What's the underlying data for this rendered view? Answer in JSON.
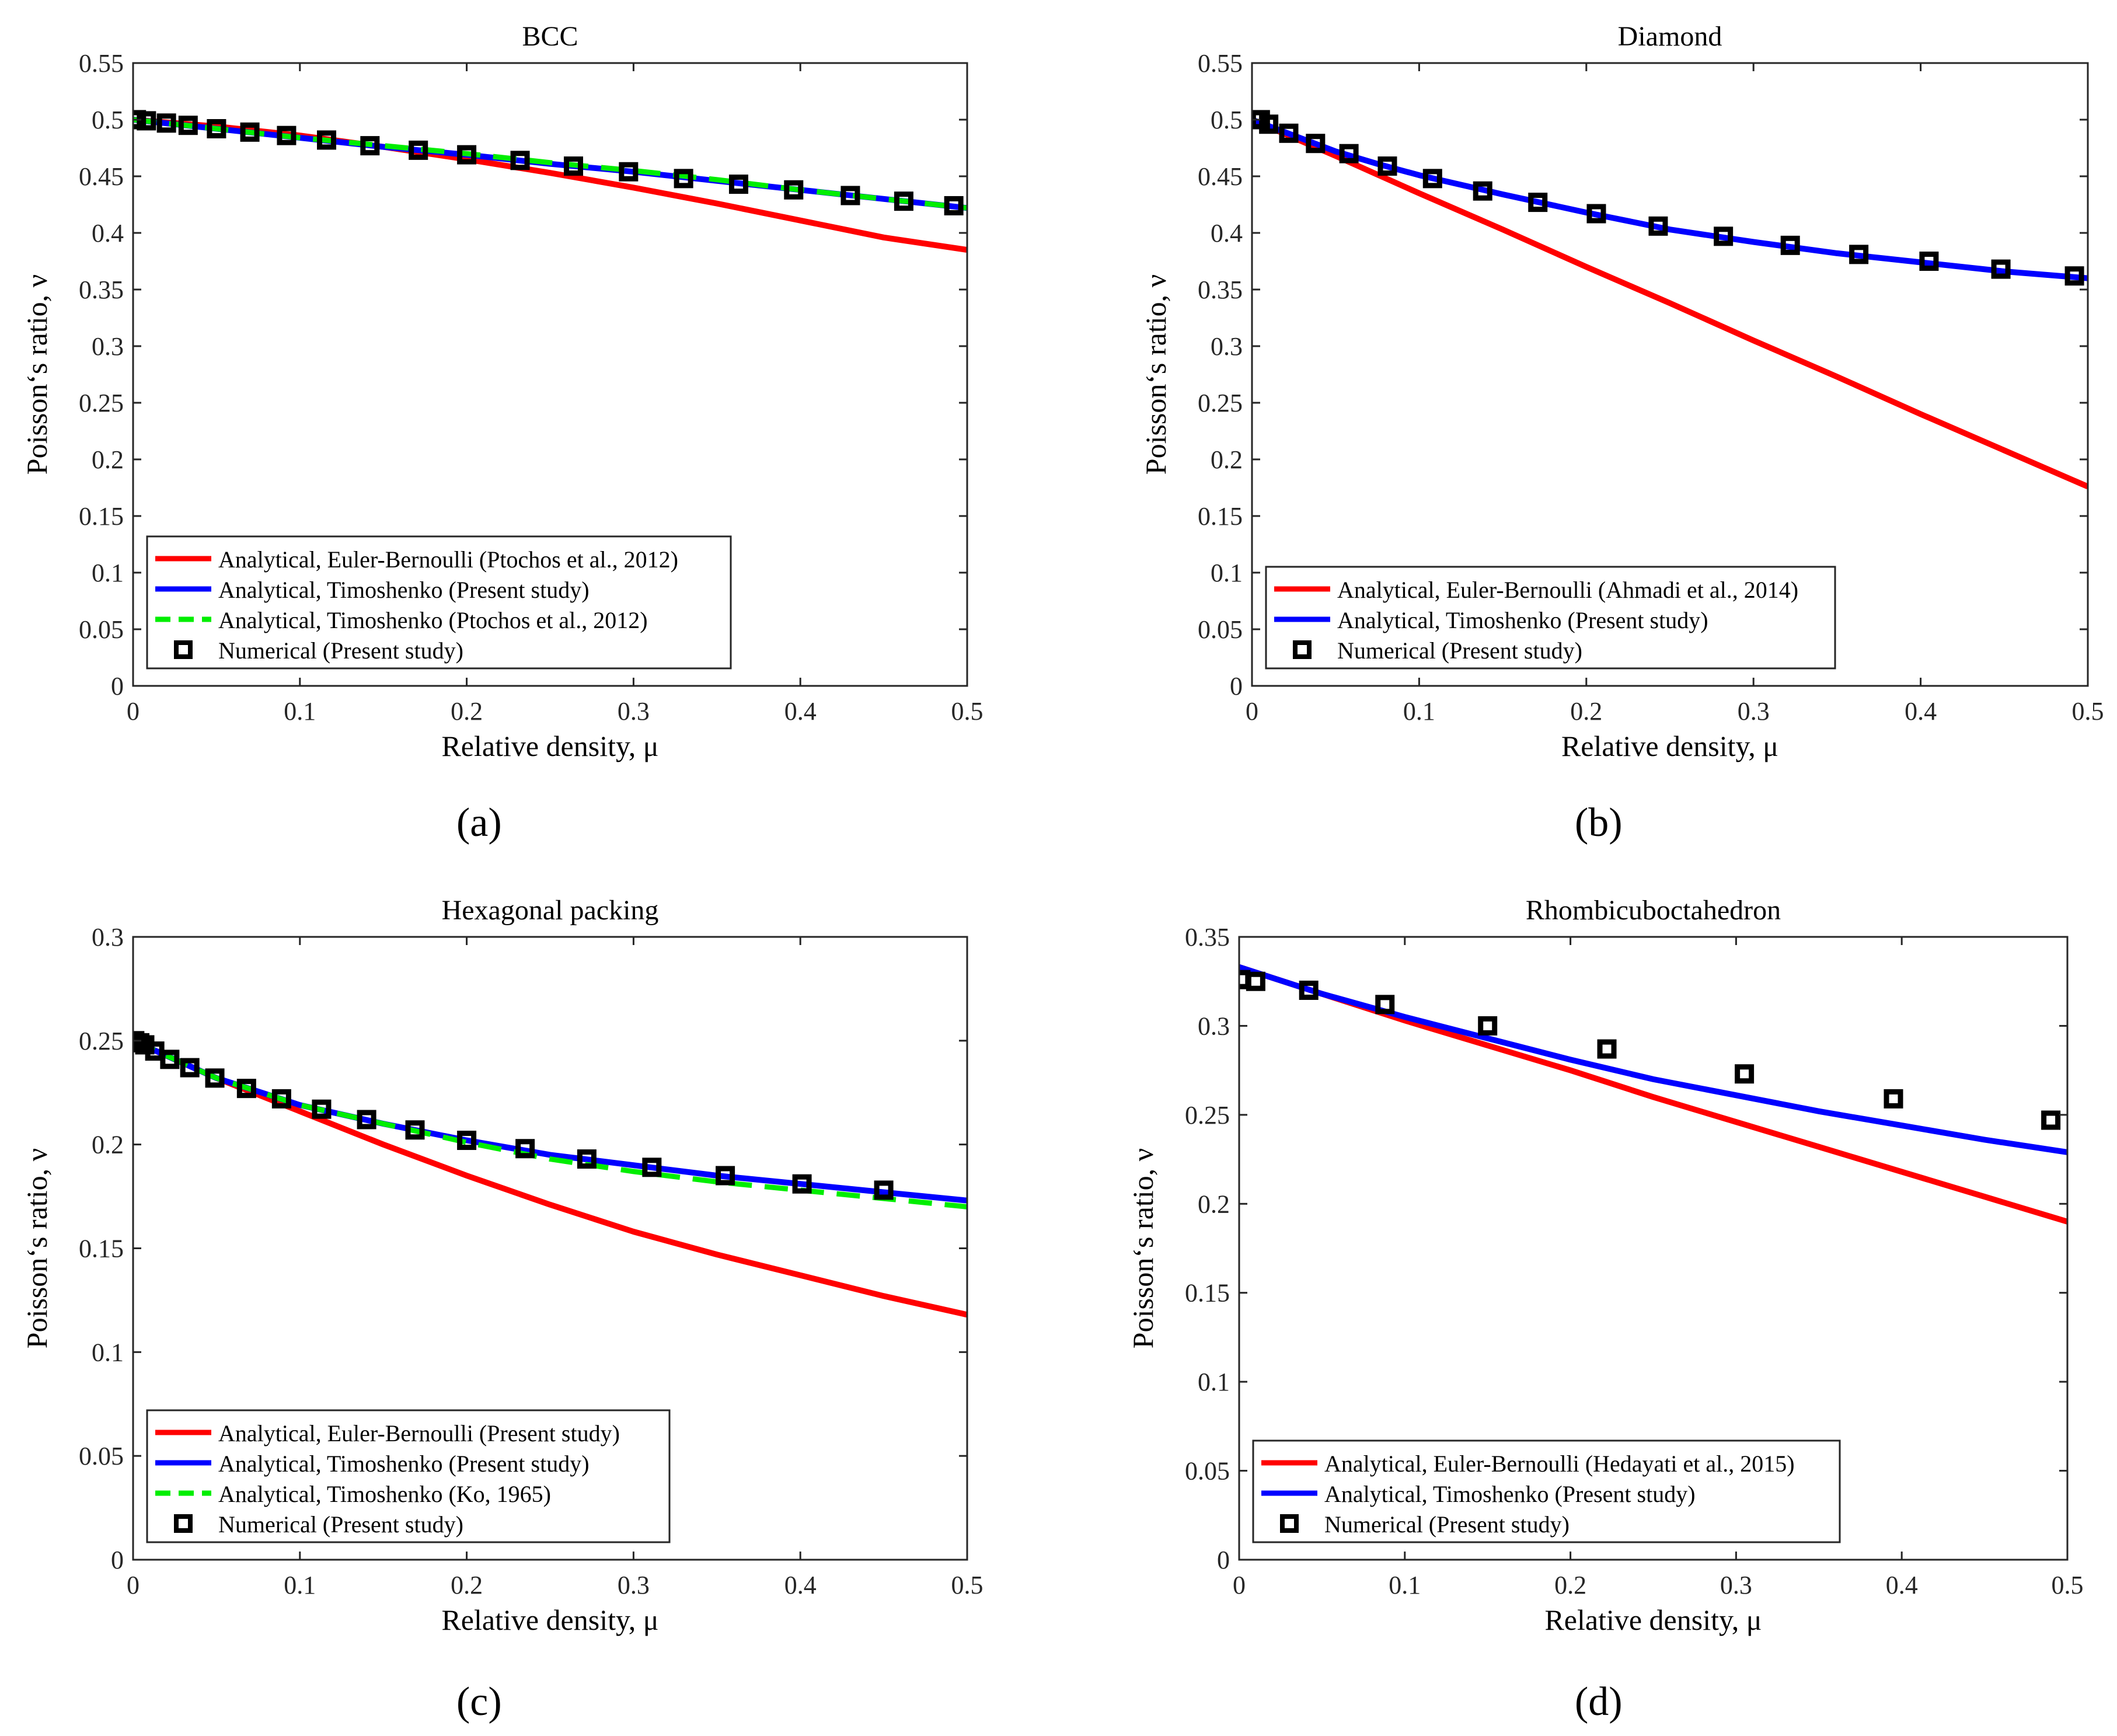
{
  "panel_labels": [
    "(a)",
    "(b)",
    "(c)",
    "(d)"
  ],
  "chart_data": [
    {
      "type": "line",
      "title": "BCC",
      "xlabel": "Relative density, μ",
      "ylabel": "Poisson‘s ratio, ν",
      "xlim": [
        0,
        0.5
      ],
      "ylim": [
        0,
        0.55
      ],
      "xticks": [
        0,
        0.1,
        0.2,
        0.3,
        0.4,
        0.5
      ],
      "xtick_labels": [
        "0",
        "0.1",
        "0.2",
        "0.3",
        "0.4",
        "0.5"
      ],
      "yticks": [
        0,
        0.05,
        0.1,
        0.15,
        0.2,
        0.25,
        0.3,
        0.35,
        0.4,
        0.45,
        0.5,
        0.55
      ],
      "ytick_labels": [
        "0",
        "0.05",
        "0.1",
        "0.15",
        "0.2",
        "0.25",
        "0.3",
        "0.35",
        "0.4",
        "0.45",
        "0.5",
        "0.55"
      ],
      "legend_position": "bottom-left",
      "series": [
        {
          "name": "Analytical, Euler-Bernoulli (Ptochos et al., 2012)",
          "style": "line",
          "color": "#ff0000",
          "x": [
            0,
            0.05,
            0.1,
            0.15,
            0.2,
            0.25,
            0.3,
            0.35,
            0.4,
            0.45,
            0.5
          ],
          "y": [
            0.5,
            0.494,
            0.486,
            0.476,
            0.465,
            0.453,
            0.44,
            0.426,
            0.411,
            0.396,
            0.385
          ]
        },
        {
          "name": "Analytical, Timoshenko (Present study)",
          "style": "line",
          "color": "#0000ff",
          "x": [
            0,
            0.05,
            0.1,
            0.15,
            0.2,
            0.25,
            0.3,
            0.35,
            0.4,
            0.45,
            0.5
          ],
          "y": [
            0.5,
            0.492,
            0.484,
            0.476,
            0.469,
            0.461,
            0.454,
            0.446,
            0.438,
            0.43,
            0.422
          ]
        },
        {
          "name": "Analytical, Timoshenko (Ptochos et al., 2012)",
          "style": "dashed",
          "color": "#00ee00",
          "x": [
            0,
            0.05,
            0.1,
            0.15,
            0.2,
            0.25,
            0.3,
            0.35,
            0.4,
            0.45,
            0.5
          ],
          "y": [
            0.5,
            0.492,
            0.484,
            0.477,
            0.47,
            0.462,
            0.455,
            0.447,
            0.438,
            0.43,
            0.422
          ]
        },
        {
          "name": "Numerical (Present study)",
          "style": "marker",
          "color": "#000000",
          "x": [
            0.002,
            0.008,
            0.02,
            0.033,
            0.05,
            0.07,
            0.092,
            0.116,
            0.142,
            0.171,
            0.2,
            0.232,
            0.264,
            0.297,
            0.33,
            0.363,
            0.396,
            0.43,
            0.462,
            0.492
          ],
          "y": [
            0.5,
            0.499,
            0.497,
            0.495,
            0.492,
            0.489,
            0.486,
            0.482,
            0.477,
            0.473,
            0.469,
            0.464,
            0.459,
            0.454,
            0.448,
            0.443,
            0.438,
            0.433,
            0.428,
            0.424
          ]
        }
      ]
    },
    {
      "type": "line",
      "title": "Diamond",
      "xlabel": "Relative density, μ",
      "ylabel": "Poisson‘s ratio, ν",
      "xlim": [
        0,
        0.5
      ],
      "ylim": [
        0,
        0.55
      ],
      "xticks": [
        0,
        0.1,
        0.2,
        0.3,
        0.4,
        0.5
      ],
      "xtick_labels": [
        "0",
        "0.1",
        "0.2",
        "0.3",
        "0.4",
        "0.5"
      ],
      "yticks": [
        0,
        0.05,
        0.1,
        0.15,
        0.2,
        0.25,
        0.3,
        0.35,
        0.4,
        0.45,
        0.5,
        0.55
      ],
      "ytick_labels": [
        "0",
        "0.05",
        "0.1",
        "0.15",
        "0.2",
        "0.25",
        "0.3",
        "0.35",
        "0.4",
        "0.45",
        "0.5",
        "0.55"
      ],
      "legend_position": "bottom-left",
      "series": [
        {
          "name": "Analytical, Euler-Bernoulli (Ahmadi et al., 2014)",
          "style": "line",
          "color": "#ff0000",
          "x": [
            0,
            0.05,
            0.1,
            0.15,
            0.2,
            0.25,
            0.3,
            0.35,
            0.4,
            0.45,
            0.5
          ],
          "y": [
            0.5,
            0.468,
            0.435,
            0.403,
            0.37,
            0.338,
            0.305,
            0.273,
            0.24,
            0.208,
            0.176
          ]
        },
        {
          "name": "Analytical, Timoshenko (Present study)",
          "style": "line",
          "color": "#0000ff",
          "x": [
            0,
            0.025,
            0.05,
            0.075,
            0.1,
            0.15,
            0.2,
            0.25,
            0.3,
            0.35,
            0.4,
            0.45,
            0.5
          ],
          "y": [
            0.5,
            0.486,
            0.472,
            0.461,
            0.451,
            0.434,
            0.418,
            0.403,
            0.392,
            0.382,
            0.374,
            0.366,
            0.36
          ]
        },
        {
          "name": "Numerical (Present study)",
          "style": "marker",
          "color": "#000000",
          "x": [
            0.002,
            0.005,
            0.01,
            0.022,
            0.038,
            0.058,
            0.081,
            0.108,
            0.138,
            0.171,
            0.206,
            0.243,
            0.282,
            0.322,
            0.363,
            0.405,
            0.448,
            0.492
          ],
          "y": [
            0.5,
            0.5,
            0.496,
            0.488,
            0.479,
            0.47,
            0.459,
            0.448,
            0.437,
            0.427,
            0.417,
            0.406,
            0.397,
            0.389,
            0.381,
            0.375,
            0.368,
            0.362
          ]
        }
      ]
    },
    {
      "type": "line",
      "title": "Hexagonal packing",
      "xlabel": "Relative density, μ",
      "ylabel": "Poisson‘s ratio, ν",
      "xlim": [
        0,
        0.5
      ],
      "ylim": [
        0,
        0.3
      ],
      "xticks": [
        0,
        0.1,
        0.2,
        0.3,
        0.4,
        0.5
      ],
      "xtick_labels": [
        "0",
        "0.1",
        "0.2",
        "0.3",
        "0.4",
        "0.5"
      ],
      "yticks": [
        0,
        0.05,
        0.1,
        0.15,
        0.2,
        0.25,
        0.3
      ],
      "ytick_labels": [
        "0",
        "0.05",
        "0.1",
        "0.15",
        "0.2",
        "0.25",
        "0.3"
      ],
      "legend_position": "bottom-left",
      "series": [
        {
          "name": "Analytical, Euler-Bernoulli (Present study)",
          "style": "line",
          "color": "#ff0000",
          "x": [
            0,
            0.05,
            0.1,
            0.15,
            0.2,
            0.25,
            0.3,
            0.35,
            0.4,
            0.45,
            0.5
          ],
          "y": [
            0.25,
            0.232,
            0.216,
            0.2,
            0.185,
            0.171,
            0.158,
            0.147,
            0.137,
            0.127,
            0.118
          ]
        },
        {
          "name": "Analytical, Timoshenko (Present study)",
          "style": "line",
          "color": "#0000ff",
          "x": [
            0,
            0.05,
            0.1,
            0.15,
            0.2,
            0.25,
            0.3,
            0.35,
            0.4,
            0.45,
            0.5
          ],
          "y": [
            0.25,
            0.232,
            0.219,
            0.21,
            0.202,
            0.195,
            0.19,
            0.185,
            0.181,
            0.177,
            0.173
          ]
        },
        {
          "name": "Analytical, Timoshenko (Ko, 1965)",
          "style": "dashed",
          "color": "#00ee00",
          "x": [
            0,
            0.05,
            0.1,
            0.15,
            0.2,
            0.25,
            0.3,
            0.35,
            0.4,
            0.45,
            0.5
          ],
          "y": [
            0.25,
            0.232,
            0.219,
            0.21,
            0.201,
            0.193,
            0.187,
            0.182,
            0.178,
            0.174,
            0.17
          ]
        },
        {
          "name": "Numerical (Present study)",
          "style": "marker",
          "color": "#000000",
          "x": [
            0.001,
            0.004,
            0.007,
            0.013,
            0.022,
            0.034,
            0.049,
            0.068,
            0.089,
            0.113,
            0.14,
            0.169,
            0.2,
            0.235,
            0.272,
            0.311,
            0.355,
            0.401,
            0.45
          ],
          "y": [
            0.25,
            0.249,
            0.248,
            0.245,
            0.241,
            0.237,
            0.232,
            0.227,
            0.222,
            0.217,
            0.212,
            0.207,
            0.202,
            0.198,
            0.193,
            0.189,
            0.185,
            0.181,
            0.178
          ]
        }
      ]
    },
    {
      "type": "line",
      "title": "Rhombicuboctahedron",
      "xlabel": "Relative density, μ",
      "ylabel": "Poisson‘s ratio, ν",
      "xlim": [
        0,
        0.5
      ],
      "ylim": [
        0,
        0.35
      ],
      "xticks": [
        0,
        0.1,
        0.2,
        0.3,
        0.4,
        0.5
      ],
      "xtick_labels": [
        "0",
        "0.1",
        "0.2",
        "0.3",
        "0.4",
        "0.5"
      ],
      "yticks": [
        0,
        0.05,
        0.1,
        0.15,
        0.2,
        0.25,
        0.3,
        0.35
      ],
      "ytick_labels": [
        "0",
        "0.05",
        "0.1",
        "0.15",
        "0.2",
        "0.25",
        "0.3",
        "0.35"
      ],
      "legend_position": "bottom-left",
      "series": [
        {
          "name": "Analytical, Euler-Bernoulli (Hedayati et al., 2015)",
          "style": "line",
          "color": "#ff0000",
          "x": [
            0,
            0.05,
            0.1,
            0.15,
            0.2,
            0.25,
            0.3,
            0.35,
            0.4,
            0.45,
            0.5
          ],
          "y": [
            0.333,
            0.318,
            0.303,
            0.289,
            0.275,
            0.26,
            0.246,
            0.232,
            0.218,
            0.204,
            0.19
          ]
        },
        {
          "name": "Analytical, Timoshenko (Present study)",
          "style": "line",
          "color": "#0000ff",
          "x": [
            0,
            0.05,
            0.1,
            0.15,
            0.2,
            0.25,
            0.3,
            0.35,
            0.4,
            0.45,
            0.5
          ],
          "y": [
            0.333,
            0.318,
            0.305,
            0.293,
            0.281,
            0.27,
            0.261,
            0.252,
            0.244,
            0.236,
            0.229
          ]
        },
        {
          "name": "Numerical (Present study)",
          "style": "marker",
          "color": "#000000",
          "x": [
            0.001,
            0.01,
            0.042,
            0.088,
            0.15,
            0.222,
            0.305,
            0.395,
            0.49
          ],
          "y": [
            0.326,
            0.325,
            0.32,
            0.312,
            0.3,
            0.287,
            0.273,
            0.259,
            0.247
          ]
        }
      ]
    }
  ]
}
